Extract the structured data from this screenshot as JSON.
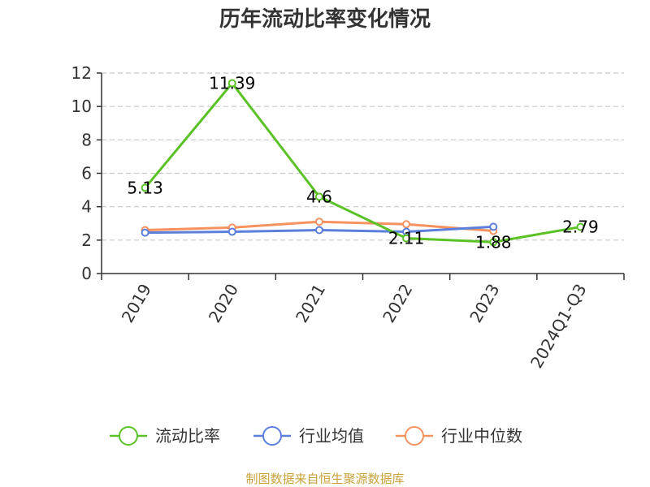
{
  "chart_data": {
    "type": "line",
    "title": "历年流动比率变化情况",
    "categories": [
      "2019",
      "2020",
      "2021",
      "2022",
      "2023",
      "2024Q1-Q3"
    ],
    "ylim": [
      0,
      12
    ],
    "yticks": [
      0,
      2,
      4,
      6,
      8,
      10,
      12
    ],
    "grid": true,
    "legend_position": "bottom",
    "series": [
      {
        "name": "流动比率",
        "color": "#5bc226",
        "values": [
          5.13,
          11.39,
          4.6,
          2.11,
          1.88,
          2.79
        ],
        "labels": [
          "5.13",
          "11.39",
          "4.6",
          "2.11",
          "1.88",
          "2.79"
        ]
      },
      {
        "name": "行业均值",
        "color": "#5b7fdb",
        "values": [
          2.45,
          2.5,
          2.6,
          2.5,
          2.8,
          null
        ]
      },
      {
        "name": "行业中位数",
        "color": "#f5925f",
        "values": [
          2.6,
          2.75,
          3.1,
          2.95,
          2.55,
          null
        ]
      }
    ]
  },
  "source": "制图数据来自恒生聚源数据库"
}
